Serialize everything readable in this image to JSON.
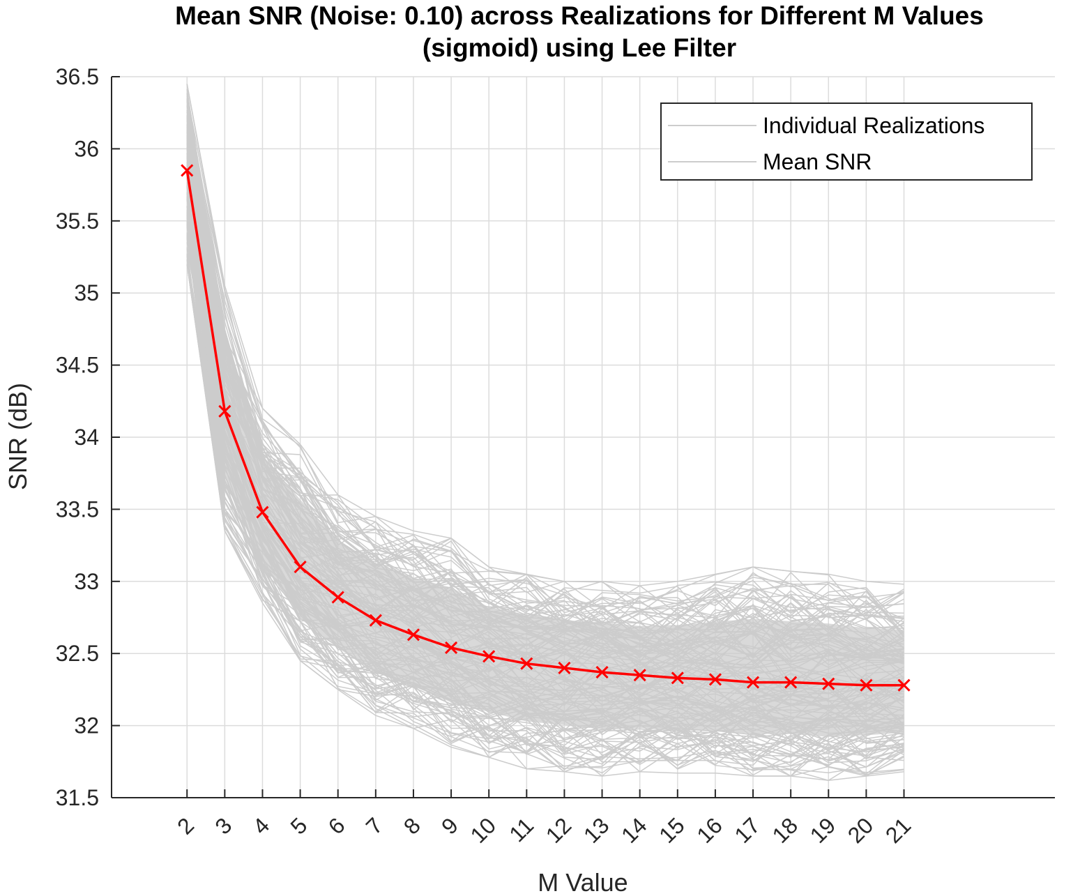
{
  "chart_data": {
    "type": "line",
    "title": "Mean SNR (Noise: 0.10) across Realizations for Different M Values",
    "subtitle": "(sigmoid) using Lee Filter",
    "xlabel": "M Value",
    "ylabel": "SNR (dB)",
    "xlim": [
      0,
      25
    ],
    "ylim": [
      31.5,
      36.5
    ],
    "x_ticks": [
      "2",
      "3",
      "4",
      "5",
      "6",
      "7",
      "8",
      "9",
      "10",
      "11",
      "12",
      "13",
      "14",
      "15",
      "16",
      "17",
      "18",
      "19",
      "20",
      "21"
    ],
    "y_ticks": [
      "31.5",
      "32",
      "32.5",
      "33",
      "33.5",
      "34",
      "34.5",
      "35",
      "35.5",
      "36",
      "36.5"
    ],
    "grid": true,
    "legend_position": "top-right",
    "x": [
      2,
      3,
      4,
      5,
      6,
      7,
      8,
      9,
      10,
      11,
      12,
      13,
      14,
      15,
      16,
      17,
      18,
      19,
      20,
      21
    ],
    "series": [
      {
        "name": "Mean SNR",
        "color": "#ff0000",
        "marker": "x",
        "values": [
          35.85,
          34.18,
          33.48,
          33.1,
          32.89,
          32.73,
          32.63,
          32.54,
          32.48,
          32.43,
          32.4,
          32.37,
          32.35,
          32.33,
          32.32,
          32.3,
          32.3,
          32.29,
          32.28,
          32.28
        ]
      }
    ],
    "realizations": {
      "name": "Individual Realizations",
      "color": "#cccccc",
      "upper_envelope": [
        36.45,
        35.05,
        34.2,
        33.95,
        33.6,
        33.45,
        33.35,
        33.3,
        33.1,
        33.05,
        33.0,
        33.0,
        32.97,
        33.0,
        33.05,
        33.1,
        33.07,
        33.05,
        33.0,
        32.98
      ],
      "lower_envelope": [
        35.2,
        33.35,
        32.85,
        32.45,
        32.25,
        32.07,
        31.98,
        31.85,
        31.78,
        31.7,
        31.68,
        31.65,
        31.68,
        31.67,
        31.67,
        31.65,
        31.65,
        31.62,
        31.65,
        31.68
      ]
    },
    "legend": [
      "Individual Realizations",
      "Mean SNR"
    ]
  }
}
